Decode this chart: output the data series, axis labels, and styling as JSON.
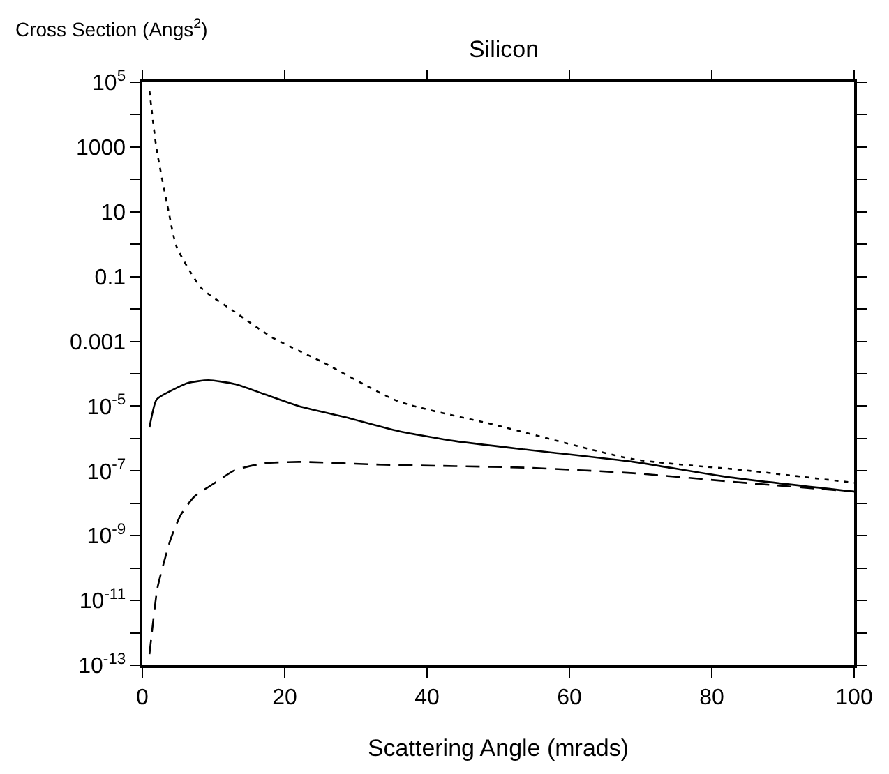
{
  "chart_data": {
    "type": "line",
    "title": "Silicon",
    "xlabel": "Scattering Angle (mrads)",
    "ylabel": "Cross Section (Angs$^{2}$)",
    "log": "y",
    "marker": "none",
    "xlim": [
      0,
      100
    ],
    "xticks": [
      0,
      20,
      40,
      60,
      80,
      100
    ],
    "ylim": [
      1e-13,
      100000.0
    ],
    "yticks": [
      {
        "value": 100000.0,
        "label": "10$^{5}$"
      },
      {
        "value": 10000.0,
        "label": null
      },
      1000,
      {
        "value": 100,
        "label": null
      },
      10,
      {
        "value": 1,
        "label": null
      },
      0.1,
      {
        "value": 0.01,
        "label": null
      },
      0.001,
      {
        "value": 0.0001,
        "label": null
      },
      {
        "value": 1e-05,
        "label": "10$^{-5}$"
      },
      {
        "value": 1e-06,
        "label": null
      },
      {
        "value": 1e-07,
        "label": "10$^{-7}$"
      },
      {
        "value": 1e-08,
        "label": null
      },
      {
        "value": 1e-09,
        "label": "10$^{-9}$"
      },
      {
        "value": 1e-10,
        "label": null
      },
      {
        "value": 1e-11,
        "label": "10$^{-11}$"
      },
      {
        "value": 1e-12,
        "label": null
      },
      {
        "value": 1e-13,
        "label": "10$^{-13}$"
      }
    ],
    "series": [
      {
        "color": "#000000",
        "line_style": "dotted",
        "x": [
          1,
          2,
          3.7,
          4.8,
          8.3,
          12.7,
          18.3,
          25.3,
          36,
          50,
          69,
          84.6,
          100
        ],
        "values": [
          55000.0,
          870,
          10,
          0.85,
          0.044,
          0.009,
          0.0013,
          0.00023,
          1.4e-05,
          2.5e-06,
          2.3e-07,
          1.05e-07,
          4.3e-08
        ]
      },
      {
        "color": "#000000",
        "line_style": "solid",
        "x": [
          1,
          2,
          3.5,
          6.4,
          9.3,
          13,
          17,
          22,
          28.6,
          36,
          44,
          53.7,
          57.5,
          69,
          82.6,
          100
        ],
        "values": [
          2.2e-06,
          1.6e-05,
          2.6e-05,
          5.2e-05,
          6.3e-05,
          4.8e-05,
          2.4e-05,
          1e-05,
          4.5e-06,
          1.7e-06,
          8.3e-07,
          4.6e-07,
          3.7e-07,
          1.9e-07,
          6.3e-08,
          2.3e-08
        ]
      },
      {
        "color": "#000000",
        "line_style": "dashed",
        "x": [
          1,
          1.5,
          2.1,
          3.1,
          4,
          5.4,
          7.3,
          10.2,
          13,
          17,
          22,
          34,
          53.7,
          69,
          84.6,
          100
        ],
        "values": [
          2.2e-13,
          2.1e-12,
          2.3e-11,
          1.7e-10,
          8.1e-10,
          4.4e-09,
          1.6e-08,
          4.3e-08,
          1.05e-07,
          1.7e-07,
          1.9e-07,
          1.55e-07,
          1.26e-07,
          8.5e-08,
          4.3e-08,
          2.3e-08
        ]
      }
    ]
  }
}
